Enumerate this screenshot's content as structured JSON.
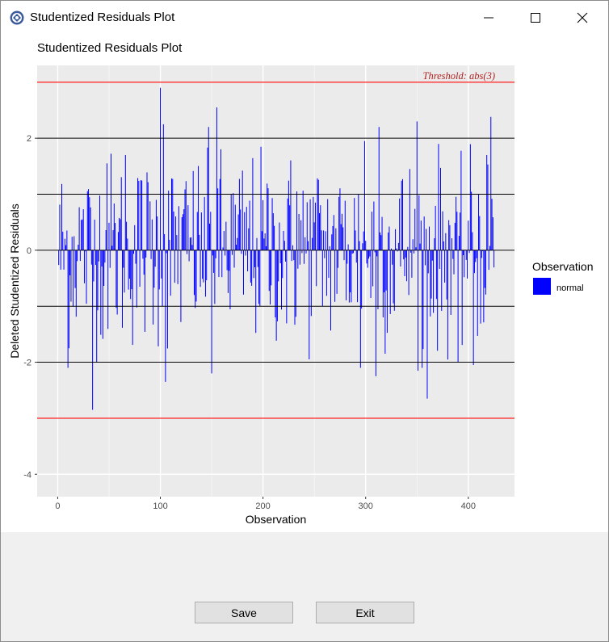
{
  "window": {
    "title": "Studentized Residuals Plot",
    "controls": [
      "minimize",
      "maximize",
      "close"
    ]
  },
  "buttons": {
    "save_label": "Save",
    "exit_label": "Exit"
  },
  "chart_data": {
    "type": "bar",
    "title": "Studentized Residuals Plot",
    "xlabel": "Observation",
    "ylabel": "Deleted Studentized Residuals",
    "xlim": [
      -20,
      445
    ],
    "ylim": [
      -4.4,
      3.3
    ],
    "xticks": [
      0,
      100,
      200,
      300,
      400
    ],
    "yticks": [
      -4,
      -2,
      0,
      2
    ],
    "grid": true,
    "threshold_lines": [
      3,
      -3
    ],
    "threshold_label": "Threshold: abs(3)",
    "reference_lines": [
      2,
      1,
      0,
      -1,
      -2
    ],
    "legend": {
      "title": "Observation",
      "entries": [
        "normal"
      ],
      "position": "right"
    },
    "colors": {
      "bar": "#0000ff",
      "threshold": "#ff0000",
      "threshold_label": "#b22222",
      "panel": "#ebebeb",
      "reference": "#000000"
    },
    "n_observations": 425,
    "notable_values": [
      {
        "x": 100,
        "y": 2.9
      },
      {
        "x": 103,
        "y": 2.25
      },
      {
        "x": 34,
        "y": -2.85
      },
      {
        "x": 360,
        "y": -2.65
      },
      {
        "x": 155,
        "y": 2.55
      },
      {
        "x": 350,
        "y": 2.3
      },
      {
        "x": 422,
        "y": 2.38
      },
      {
        "x": 105,
        "y": -2.35
      },
      {
        "x": 150,
        "y": -2.2
      },
      {
        "x": 310,
        "y": -2.25
      },
      {
        "x": 10,
        "y": -2.1
      },
      {
        "x": 295,
        "y": -2.1
      },
      {
        "x": 355,
        "y": -2.1
      },
      {
        "x": 405,
        "y": -2.05
      },
      {
        "x": 390,
        "y": -2.0
      },
      {
        "x": 48,
        "y": 1.55
      },
      {
        "x": 66,
        "y": 1.7
      },
      {
        "x": 147,
        "y": 2.2
      },
      {
        "x": 233,
        "y": 1.05
      },
      {
        "x": 299,
        "y": 1.95
      },
      {
        "x": 313,
        "y": 2.2
      },
      {
        "x": 418,
        "y": 1.7
      }
    ]
  }
}
